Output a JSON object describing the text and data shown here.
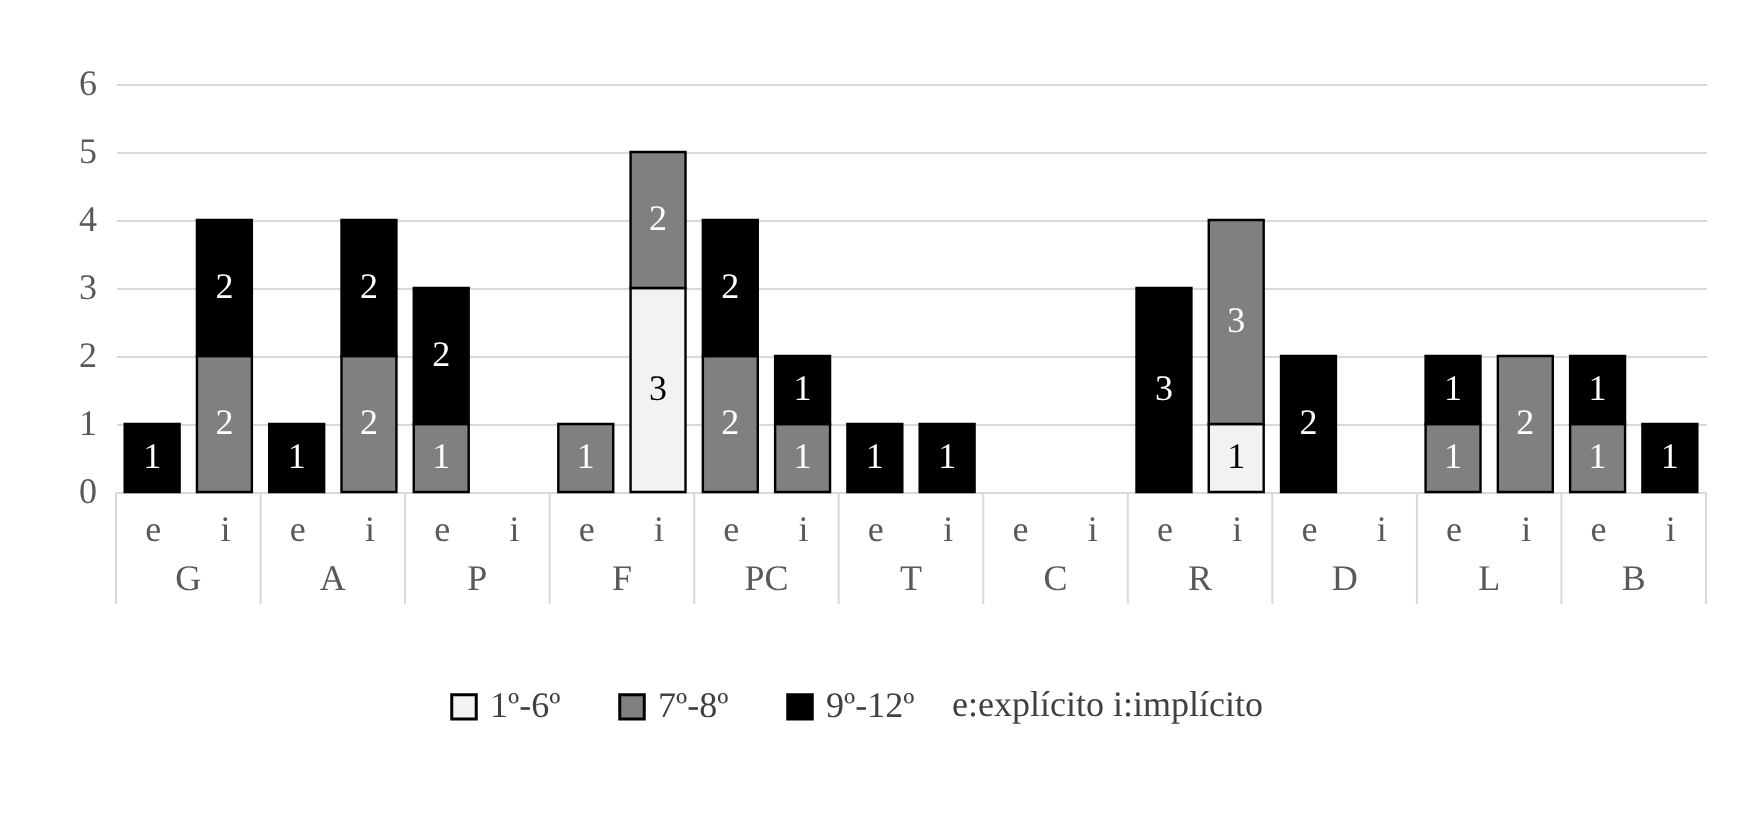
{
  "chart_data": {
    "type": "bar",
    "stacked": true,
    "categories": [
      "e",
      "i",
      "e",
      "i",
      "e",
      "i",
      "e",
      "i",
      "e",
      "i",
      "e",
      "i",
      "e",
      "i",
      "e",
      "i",
      "e",
      "i",
      "e",
      "i",
      "e",
      "i"
    ],
    "series": [
      {
        "name": "1º-6º",
        "color": "#f2f2f2",
        "values": [
          null,
          null,
          null,
          null,
          null,
          null,
          null,
          3,
          null,
          null,
          null,
          null,
          null,
          null,
          null,
          1,
          null,
          null,
          null,
          null,
          null,
          null
        ]
      },
      {
        "name": "7º-8º",
        "color": "#808080",
        "values": [
          null,
          2,
          null,
          2,
          1,
          null,
          1,
          2,
          2,
          1,
          null,
          null,
          null,
          null,
          null,
          3,
          null,
          null,
          1,
          2,
          1,
          null
        ]
      },
      {
        "name": "9º-12º",
        "color": "#000000",
        "values": [
          1,
          2,
          1,
          2,
          2,
          null,
          null,
          null,
          2,
          1,
          1,
          1,
          null,
          null,
          3,
          null,
          2,
          null,
          1,
          null,
          1,
          1
        ]
      }
    ],
    "ylim": [
      0,
      6
    ],
    "yticks": [
      0,
      1,
      2,
      3,
      4,
      5,
      6
    ],
    "grid": "y",
    "legend": "bottom",
    "data_labels": true,
    "annotations": [
      "G",
      "A",
      "P",
      "F",
      "PC",
      "T",
      "C",
      "R",
      "D",
      "L",
      "B",
      "e:explícito i:implícito"
    ]
  }
}
